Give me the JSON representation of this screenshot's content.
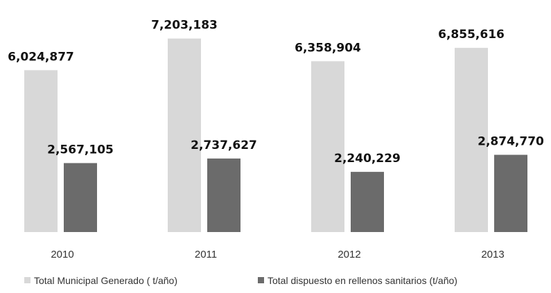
{
  "chart_data": {
    "type": "bar",
    "categories": [
      "2010",
      "2011",
      "2012",
      "2013"
    ],
    "series": [
      {
        "name": "Total Municipal Generado ( t/año)",
        "color": "#d8d8d8",
        "values": [
          6024877,
          7203183,
          6358904,
          6855616
        ],
        "labels": [
          "6,024,877",
          "7,203,183",
          "6,358,904",
          "6,855,616"
        ]
      },
      {
        "name": "Total dispuesto en rellenos sanitarios (t/año)",
        "color": "#6b6b6b",
        "values": [
          2567105,
          2737627,
          2240229,
          2874770
        ],
        "labels": [
          "2,567,105",
          "2,737,627",
          "2,240,229",
          "2,874,770"
        ]
      }
    ],
    "title": "",
    "xlabel": "",
    "ylabel": "",
    "ylim": [
      0,
      7400000
    ],
    "grid": false,
    "legend_position": "bottom"
  }
}
